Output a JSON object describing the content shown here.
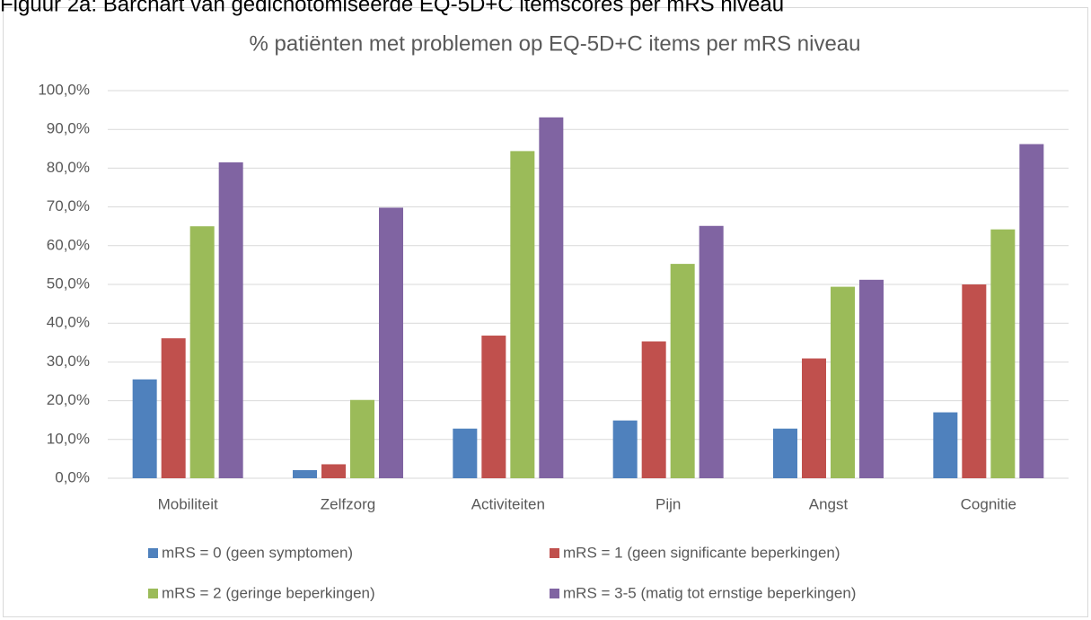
{
  "caption": "Figuur 2a: Barchart van gedichotomiseerde EQ-5D+C itemscores per mRS niveau",
  "chart_data": {
    "type": "bar",
    "title": "% patiënten met problemen op EQ-5D+C items per mRS niveau",
    "categories": [
      "Mobiliteit",
      "Zelfzorg",
      "Activiteiten",
      "Pijn",
      "Angst",
      "Cognitie"
    ],
    "series": [
      {
        "name": "mRS = 0 (geen symptomen)",
        "color": "#4f81bd",
        "values": [
          25.5,
          2.1,
          12.8,
          14.9,
          12.8,
          17.0
        ]
      },
      {
        "name": "mRS = 1 (geen significante beperkingen)",
        "color": "#c0504d",
        "values": [
          36.1,
          3.6,
          36.8,
          35.3,
          30.9,
          50.0
        ]
      },
      {
        "name": "mRS = 2 (geringe beperkingen)",
        "color": "#9bbb59",
        "values": [
          65.0,
          20.2,
          84.4,
          55.3,
          49.4,
          64.2
        ]
      },
      {
        "name": "mRS = 3-5 (matig tot ernstige beperkingen)",
        "color": "#8064a2",
        "values": [
          81.5,
          69.8,
          93.1,
          65.1,
          51.2,
          86.2
        ]
      }
    ],
    "ylim": [
      0,
      100
    ],
    "yticks": [
      {
        "value": 0,
        "label": "0,0%"
      },
      {
        "value": 10,
        "label": "10,0%"
      },
      {
        "value": 20,
        "label": "20,0%"
      },
      {
        "value": 30,
        "label": "30,0%"
      },
      {
        "value": 40,
        "label": "40,0%"
      },
      {
        "value": 50,
        "label": "50,0%"
      },
      {
        "value": 60,
        "label": "60,0%"
      },
      {
        "value": 70,
        "label": "70,0%"
      },
      {
        "value": 80,
        "label": "80,0%"
      },
      {
        "value": 90,
        "label": "90,0%"
      },
      {
        "value": 100,
        "label": "100,0%"
      }
    ],
    "grid": true
  }
}
